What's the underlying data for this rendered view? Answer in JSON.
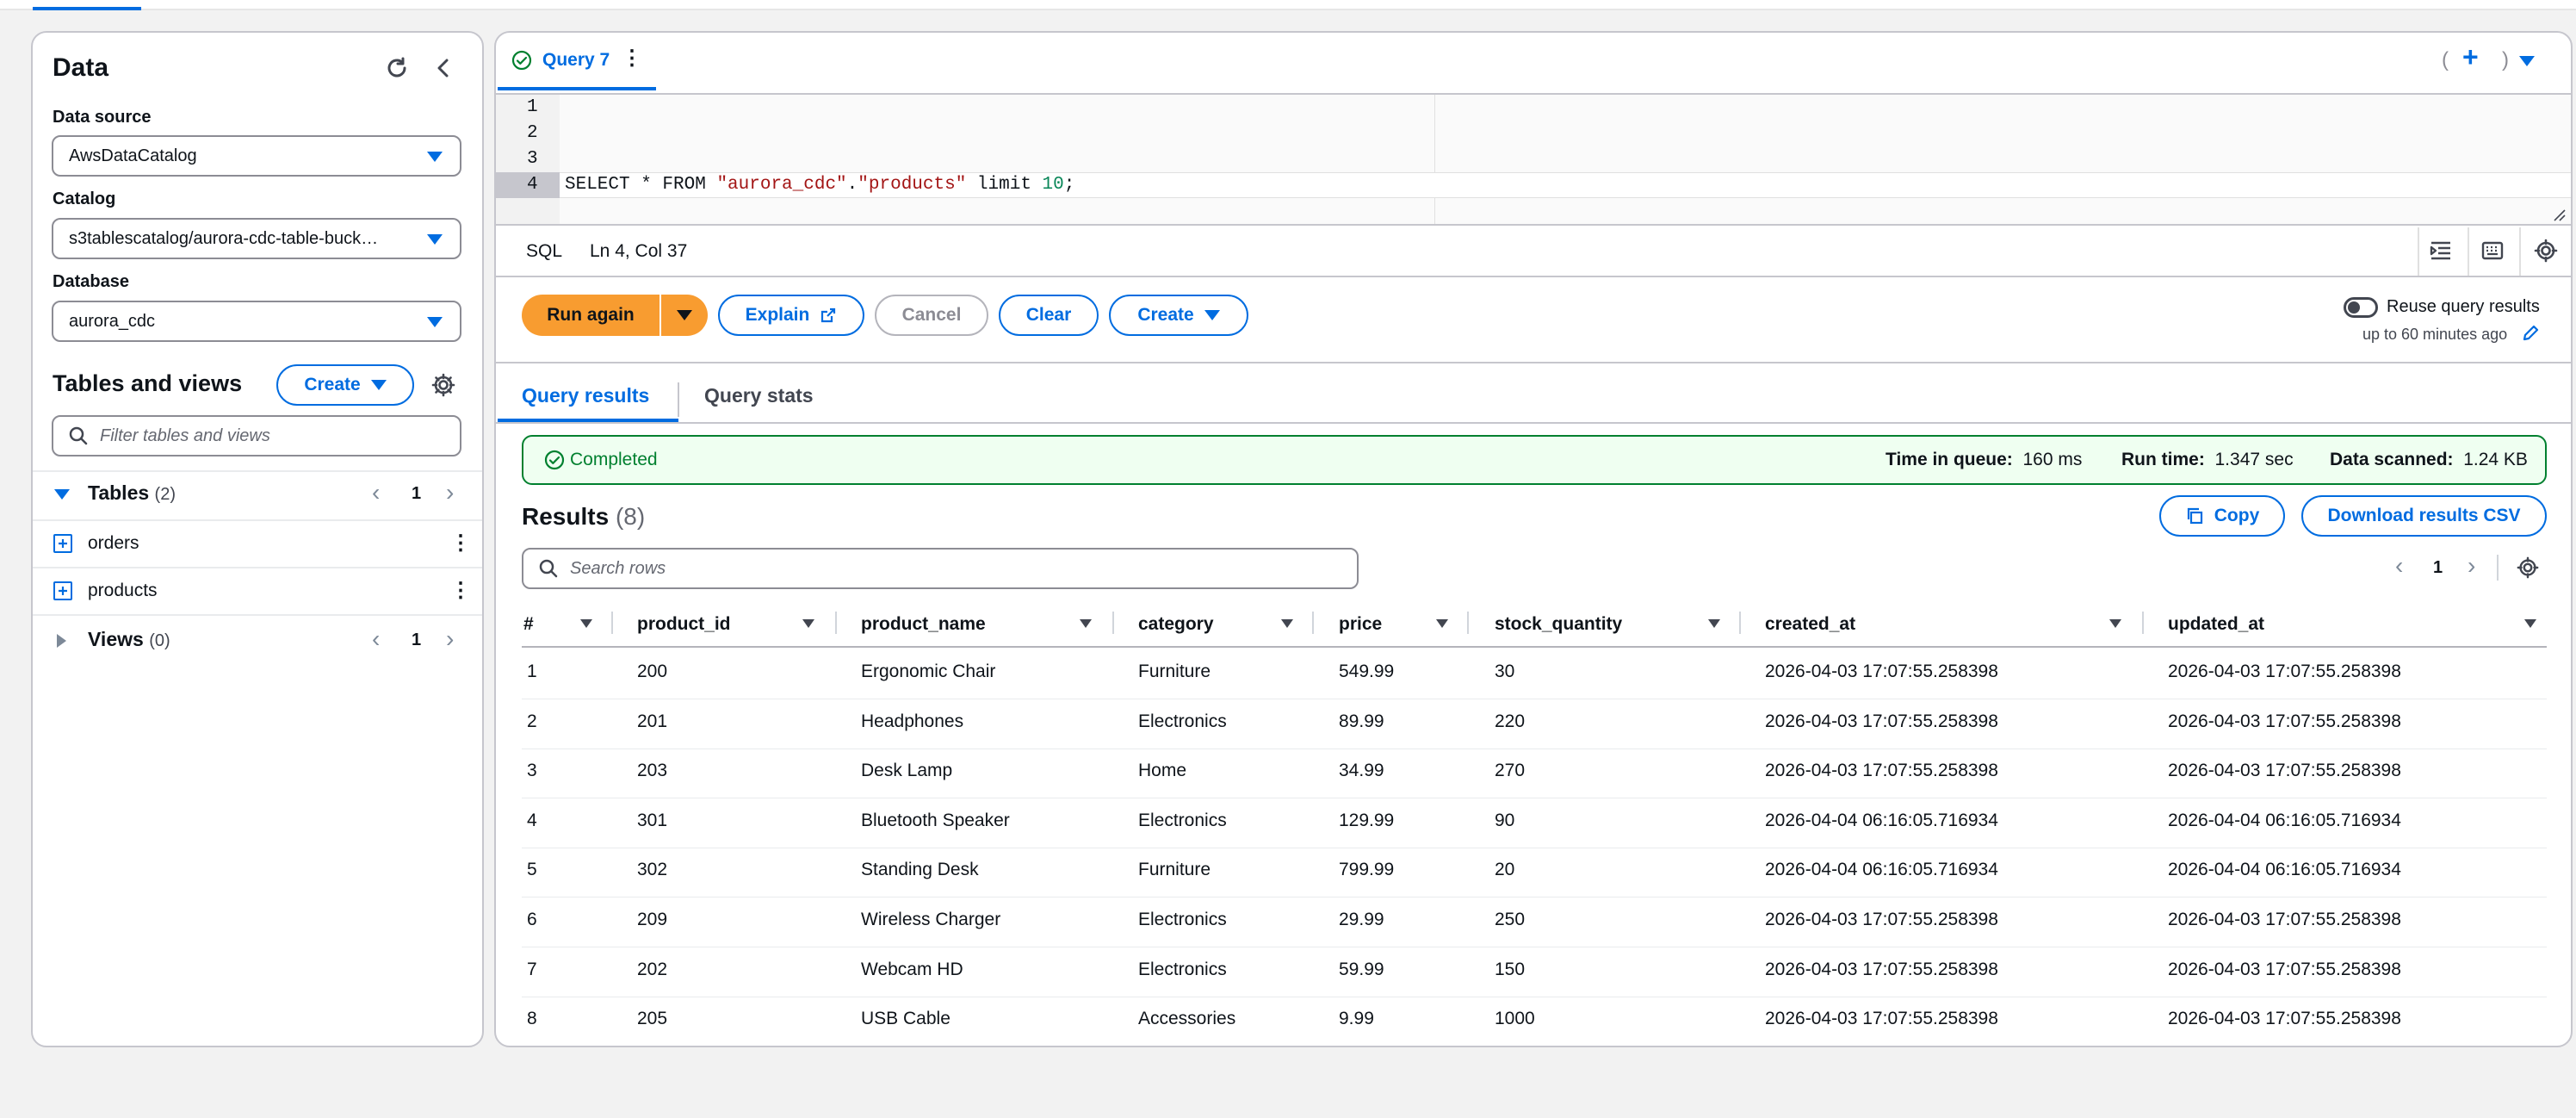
{
  "left": {
    "title": "Data",
    "data_source_label": "Data source",
    "data_source_value": "AwsDataCatalog",
    "catalog_label": "Catalog",
    "catalog_value": "s3tablescatalog/aurora-cdc-table-buck…",
    "database_label": "Database",
    "database_value": "aurora_cdc",
    "tables_views_title": "Tables and views",
    "create_label": "Create",
    "filter_placeholder": "Filter tables and views",
    "tables_label": "Tables",
    "tables_count": "(2)",
    "tables_page": "1",
    "tables": [
      "orders",
      "products"
    ],
    "views_label": "Views",
    "views_count": "(0)",
    "views_page": "1"
  },
  "editor": {
    "tab_label": "Query 7",
    "line_numbers": [
      "1",
      "2",
      "3",
      "4"
    ],
    "code_p1": "SELECT * FROM ",
    "code_s1": "\"aurora_cdc\"",
    "code_p2": ".",
    "code_s2": "\"products\"",
    "code_p3": " limit ",
    "code_n": "10",
    "code_p4": ";",
    "lang": "SQL",
    "cursor_pos": "Ln 4, Col 37"
  },
  "actions": {
    "run_again": "Run again",
    "explain": "Explain",
    "cancel": "Cancel",
    "clear": "Clear",
    "create": "Create",
    "reuse_label": "Reuse query results",
    "reuse_sub": "up to 60 minutes ago"
  },
  "result_tabs": [
    "Query results",
    "Query stats"
  ],
  "status": {
    "text": "Completed",
    "queue_label": "Time in queue:",
    "queue_value": "160 ms",
    "run_label": "Run time:",
    "run_value": "1.347 sec",
    "scan_label": "Data scanned:",
    "scan_value": "1.24 KB"
  },
  "results": {
    "title": "Results",
    "count": "(8)",
    "copy": "Copy",
    "download": "Download results CSV",
    "search_placeholder": "Search rows",
    "page": "1",
    "columns": [
      "#",
      "product_id",
      "product_name",
      "category",
      "price",
      "stock_quantity",
      "created_at",
      "updated_at"
    ],
    "rows": [
      [
        "1",
        "200",
        "Ergonomic Chair",
        "Furniture",
        "549.99",
        "30",
        "2026-04-03 17:07:55.258398",
        "2026-04-03 17:07:55.258398"
      ],
      [
        "2",
        "201",
        "Headphones",
        "Electronics",
        "89.99",
        "220",
        "2026-04-03 17:07:55.258398",
        "2026-04-03 17:07:55.258398"
      ],
      [
        "3",
        "203",
        "Desk Lamp",
        "Home",
        "34.99",
        "270",
        "2026-04-03 17:07:55.258398",
        "2026-04-03 17:07:55.258398"
      ],
      [
        "4",
        "301",
        "Bluetooth Speaker",
        "Electronics",
        "129.99",
        "90",
        "2026-04-04 06:16:05.716934",
        "2026-04-04 06:16:05.716934"
      ],
      [
        "5",
        "302",
        "Standing Desk",
        "Furniture",
        "799.99",
        "20",
        "2026-04-04 06:16:05.716934",
        "2026-04-04 06:16:05.716934"
      ],
      [
        "6",
        "209",
        "Wireless Charger",
        "Electronics",
        "29.99",
        "250",
        "2026-04-03 17:07:55.258398",
        "2026-04-03 17:07:55.258398"
      ],
      [
        "7",
        "202",
        "Webcam HD",
        "Electronics",
        "59.99",
        "150",
        "2026-04-03 17:07:55.258398",
        "2026-04-03 17:07:55.258398"
      ],
      [
        "8",
        "205",
        "USB Cable",
        "Accessories",
        "9.99",
        "1000",
        "2026-04-03 17:07:55.258398",
        "2026-04-03 17:07:55.258398"
      ]
    ]
  },
  "colors": {
    "accent": "#006ce0",
    "run_button": "#f89c30",
    "success": "#00802f",
    "success_bg": "#effff1"
  }
}
